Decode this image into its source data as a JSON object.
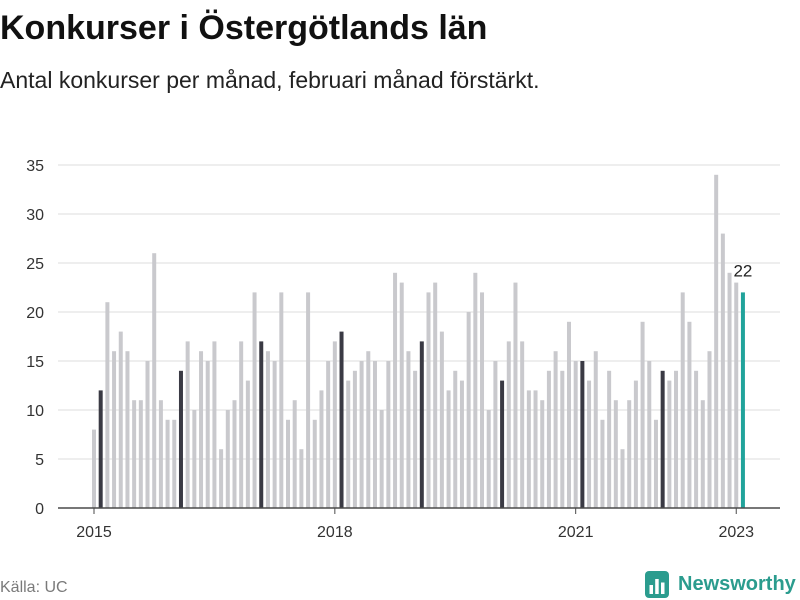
{
  "colors": {
    "bar": "#c9c9cd",
    "february": "#3a3a44",
    "latest": "#21a39b",
    "grid": "#dedede",
    "axis": "#4a4a4a",
    "brand": "#2b9c8e"
  },
  "chart_data": {
    "type": "bar",
    "title": "Konkurser i Östergötlands län",
    "subtitle": "Antal konkurser per månad, februari månad förstärkt.",
    "x": [
      "2015-01",
      "2015-02",
      "2015-03",
      "2015-04",
      "2015-05",
      "2015-06",
      "2015-07",
      "2015-08",
      "2015-09",
      "2015-10",
      "2015-11",
      "2015-12",
      "2016-01",
      "2016-02",
      "2016-03",
      "2016-04",
      "2016-05",
      "2016-06",
      "2016-07",
      "2016-08",
      "2016-09",
      "2016-10",
      "2016-11",
      "2016-12",
      "2017-01",
      "2017-02",
      "2017-03",
      "2017-04",
      "2017-05",
      "2017-06",
      "2017-07",
      "2017-08",
      "2017-09",
      "2017-10",
      "2017-11",
      "2017-12",
      "2018-01",
      "2018-02",
      "2018-03",
      "2018-04",
      "2018-05",
      "2018-06",
      "2018-07",
      "2018-08",
      "2018-09",
      "2018-10",
      "2018-11",
      "2018-12",
      "2019-01",
      "2019-02",
      "2019-03",
      "2019-04",
      "2019-05",
      "2019-06",
      "2019-07",
      "2019-08",
      "2019-09",
      "2019-10",
      "2019-11",
      "2019-12",
      "2020-01",
      "2020-02",
      "2020-03",
      "2020-04",
      "2020-05",
      "2020-06",
      "2020-07",
      "2020-08",
      "2020-09",
      "2020-10",
      "2020-11",
      "2020-12",
      "2021-01",
      "2021-02",
      "2021-03",
      "2021-04",
      "2021-05",
      "2021-06",
      "2021-07",
      "2021-08",
      "2021-09",
      "2021-10",
      "2021-11",
      "2021-12",
      "2022-01",
      "2022-02",
      "2022-03",
      "2022-04",
      "2022-05",
      "2022-06",
      "2022-07",
      "2022-08",
      "2022-09",
      "2022-10",
      "2022-11",
      "2022-12",
      "2023-01",
      "2023-02"
    ],
    "values": [
      8,
      12,
      21,
      16,
      18,
      16,
      11,
      11,
      15,
      26,
      11,
      9,
      9,
      14,
      17,
      10,
      16,
      15,
      17,
      6,
      10,
      11,
      17,
      13,
      22,
      17,
      16,
      15,
      22,
      9,
      11,
      6,
      22,
      9,
      12,
      15,
      17,
      18,
      13,
      14,
      15,
      16,
      15,
      10,
      15,
      24,
      23,
      16,
      14,
      17,
      22,
      23,
      18,
      12,
      14,
      13,
      20,
      24,
      22,
      10,
      15,
      13,
      17,
      23,
      17,
      12,
      12,
      11,
      14,
      16,
      14,
      19,
      15,
      15,
      13,
      16,
      9,
      14,
      11,
      6,
      11,
      13,
      19,
      15,
      9,
      14,
      13,
      14,
      22,
      19,
      14,
      11,
      16,
      34,
      28,
      24,
      23,
      22
    ],
    "ylim": [
      0,
      35
    ],
    "yticks": [
      0,
      5,
      10,
      15,
      20,
      25,
      30,
      35
    ],
    "xticks": [
      {
        "label": "2015",
        "x": "2015-01"
      },
      {
        "label": "2018",
        "x": "2018-01"
      },
      {
        "label": "2021",
        "x": "2021-01"
      },
      {
        "label": "2023",
        "x": "2023-01"
      }
    ],
    "annotations": [
      {
        "x": "2023-02",
        "text": "22"
      }
    ],
    "grid": true
  },
  "footer": {
    "source": "Källa: UC",
    "logo": {
      "icon": "newsworthy-logo-icon",
      "text": "Newsworthy"
    }
  }
}
